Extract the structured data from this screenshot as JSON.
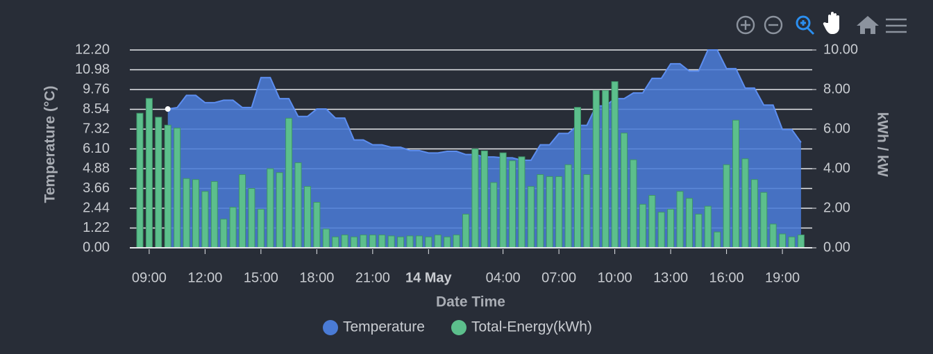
{
  "chart_data": {
    "type": "mixed",
    "x_title": "Date Time",
    "y_title": "Temperature (°C)",
    "y2_title": "kWh / kW",
    "grid": true,
    "legend": "bottom",
    "x": [
      8.5,
      9,
      9.5,
      10,
      10.5,
      11,
      11.5,
      12,
      12.5,
      13,
      13.5,
      14,
      14.5,
      15,
      15.5,
      16,
      16.5,
      17,
      17.5,
      18,
      18.5,
      19,
      19.5,
      20,
      20.5,
      21,
      21.5,
      22,
      22.5,
      23,
      23.5,
      24,
      24.5,
      25,
      25.5,
      26,
      26.5,
      27,
      27.5,
      28,
      28.5,
      29,
      29.5,
      30,
      30.5,
      31,
      31.5,
      32,
      32.5,
      33,
      33.5,
      34,
      34.5,
      35,
      35.5,
      36,
      36.5,
      37,
      37.5,
      38,
      38.5,
      39,
      39.5,
      40,
      40.5,
      41,
      41.5,
      42,
      42.5,
      43,
      43.5,
      44
    ],
    "xlim": [
      7.96,
      44.6
    ],
    "xticks": [
      {
        "value": 9,
        "label": "09:00"
      },
      {
        "value": 12,
        "label": "12:00"
      },
      {
        "value": 15,
        "label": "15:00"
      },
      {
        "value": 18,
        "label": "18:00"
      },
      {
        "value": 21,
        "label": "21:00"
      },
      {
        "value": 24,
        "label": "14 May"
      },
      {
        "value": 28,
        "label": "04:00"
      },
      {
        "value": 31,
        "label": "07:00"
      },
      {
        "value": 34,
        "label": "10:00"
      },
      {
        "value": 37,
        "label": "13:00"
      },
      {
        "value": 40,
        "label": "16:00"
      },
      {
        "value": 43,
        "label": "19:00"
      }
    ],
    "ylim": [
      0,
      12.2
    ],
    "yticks": [
      {
        "value": 0,
        "label": "0.00"
      },
      {
        "value": 1.22,
        "label": "1.22"
      },
      {
        "value": 2.44,
        "label": "2.44"
      },
      {
        "value": 3.66,
        "label": "3.66"
      },
      {
        "value": 4.88,
        "label": "4.88"
      },
      {
        "value": 6.1,
        "label": "6.10"
      },
      {
        "value": 7.32,
        "label": "7.32"
      },
      {
        "value": 8.54,
        "label": "8.54"
      },
      {
        "value": 9.76,
        "label": "9.76"
      },
      {
        "value": 10.98,
        "label": "10.98"
      },
      {
        "value": 12.2,
        "label": "12.20"
      }
    ],
    "y2lim": [
      0,
      10
    ],
    "y2ticks": [
      {
        "value": 0,
        "label": "0.00"
      },
      {
        "value": 2,
        "label": "2.00"
      },
      {
        "value": 4,
        "label": "4.00"
      },
      {
        "value": 6,
        "label": "6.00"
      },
      {
        "value": 8,
        "label": "8.00"
      },
      {
        "value": 10,
        "label": "10.00"
      }
    ],
    "series": [
      {
        "name": "Temperature",
        "type": "area",
        "color": "#4a7bd6",
        "values": [
          null,
          null,
          null,
          8.56,
          8.65,
          9.4,
          9.4,
          8.95,
          8.95,
          9.1,
          9.1,
          8.65,
          8.65,
          10.5,
          10.5,
          9.2,
          9.2,
          8.1,
          8.1,
          8.56,
          8.56,
          8.0,
          8.0,
          6.65,
          6.65,
          6.35,
          6.35,
          6.2,
          6.2,
          6.0,
          6.0,
          5.85,
          5.85,
          5.95,
          5.95,
          5.75,
          5.75,
          5.6,
          5.6,
          5.55,
          5.55,
          5.4,
          5.4,
          6.35,
          6.35,
          7.05,
          7.05,
          7.55,
          7.55,
          8.75,
          8.75,
          9.2,
          9.2,
          9.55,
          9.55,
          10.45,
          10.45,
          11.35,
          11.35,
          10.9,
          10.9,
          12.2,
          12.2,
          11.05,
          11.05,
          9.85,
          9.85,
          8.8,
          8.8,
          7.3,
          7.3,
          6.5
        ]
      },
      {
        "name": "Total-Energy(kWh)",
        "type": "bar",
        "axis": "y2",
        "color": "#5cbf8c",
        "values": [
          6.8,
          7.55,
          6.6,
          6.2,
          6.05,
          3.5,
          3.45,
          2.85,
          3.35,
          1.45,
          2.05,
          3.7,
          3.0,
          1.95,
          4.0,
          3.8,
          6.55,
          4.3,
          3.1,
          2.3,
          0.95,
          0.55,
          0.65,
          0.55,
          0.65,
          0.65,
          0.65,
          0.6,
          0.55,
          0.6,
          0.6,
          0.55,
          0.65,
          0.55,
          0.65,
          1.7,
          5.0,
          4.9,
          3.3,
          4.8,
          4.4,
          4.6,
          3.1,
          3.7,
          3.6,
          3.6,
          4.2,
          7.1,
          3.7,
          7.95,
          7.95,
          8.4,
          5.8,
          4.45,
          2.2,
          2.65,
          1.8,
          1.95,
          2.85,
          2.5,
          1.7,
          2.1,
          0.8,
          4.2,
          6.45,
          4.5,
          3.45,
          2.8,
          1.2,
          0.7,
          0.55,
          0.65
        ]
      }
    ]
  }
}
